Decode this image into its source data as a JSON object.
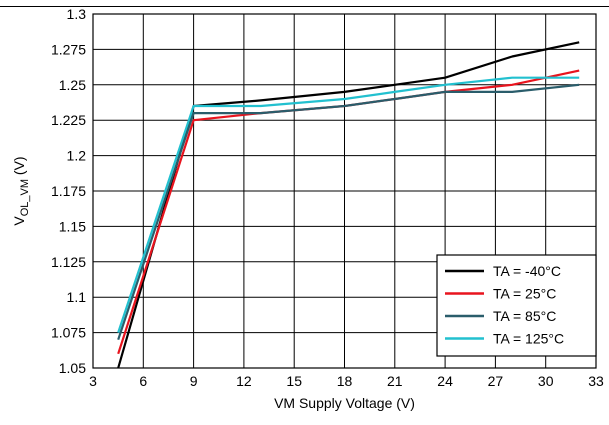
{
  "chart_data": {
    "type": "line",
    "title": "",
    "xlabel": "VM Supply Voltage (V)",
    "ylabel": {
      "main": "V",
      "sub": "OL_VM",
      "unit": " (V)"
    },
    "xlim": [
      3,
      33
    ],
    "ylim": [
      1.05,
      1.3
    ],
    "xticks": [
      3,
      6,
      9,
      12,
      15,
      18,
      21,
      24,
      27,
      30,
      33
    ],
    "yticks": [
      1.05,
      1.075,
      1.1,
      1.125,
      1.15,
      1.175,
      1.2,
      1.225,
      1.25,
      1.275,
      1.3
    ],
    "ytick_labels": [
      "1.05",
      "1.075",
      "1.1",
      "1.125",
      "1.15",
      "1.175",
      "1.2",
      "1.225",
      "1.25",
      "1.275",
      "1.3"
    ],
    "grid": true,
    "legend_position": "bottom-right",
    "series": [
      {
        "name": "TA = -40°C",
        "color": "#000000",
        "x": [
          4.5,
          9,
          13,
          18,
          21,
          24,
          28,
          32
        ],
        "y": [
          1.05,
          1.235,
          1.239,
          1.245,
          1.25,
          1.255,
          1.27,
          1.28
        ]
      },
      {
        "name": "TA = 25°C",
        "color": "#e8141e",
        "x": [
          4.5,
          9,
          13,
          18,
          21,
          24,
          28,
          32
        ],
        "y": [
          1.06,
          1.225,
          1.23,
          1.235,
          1.24,
          1.245,
          1.25,
          1.26
        ]
      },
      {
        "name": "TA = 85°C",
        "color": "#2a5d6b",
        "x": [
          4.5,
          9,
          13,
          18,
          21,
          24,
          28,
          32
        ],
        "y": [
          1.07,
          1.23,
          1.23,
          1.235,
          1.24,
          1.245,
          1.245,
          1.25
        ]
      },
      {
        "name": "TA = 125°C",
        "color": "#22c0cf",
        "x": [
          4.5,
          9,
          13,
          18,
          21,
          24,
          28,
          32
        ],
        "y": [
          1.075,
          1.235,
          1.235,
          1.24,
          1.245,
          1.25,
          1.255,
          1.255
        ]
      }
    ]
  }
}
